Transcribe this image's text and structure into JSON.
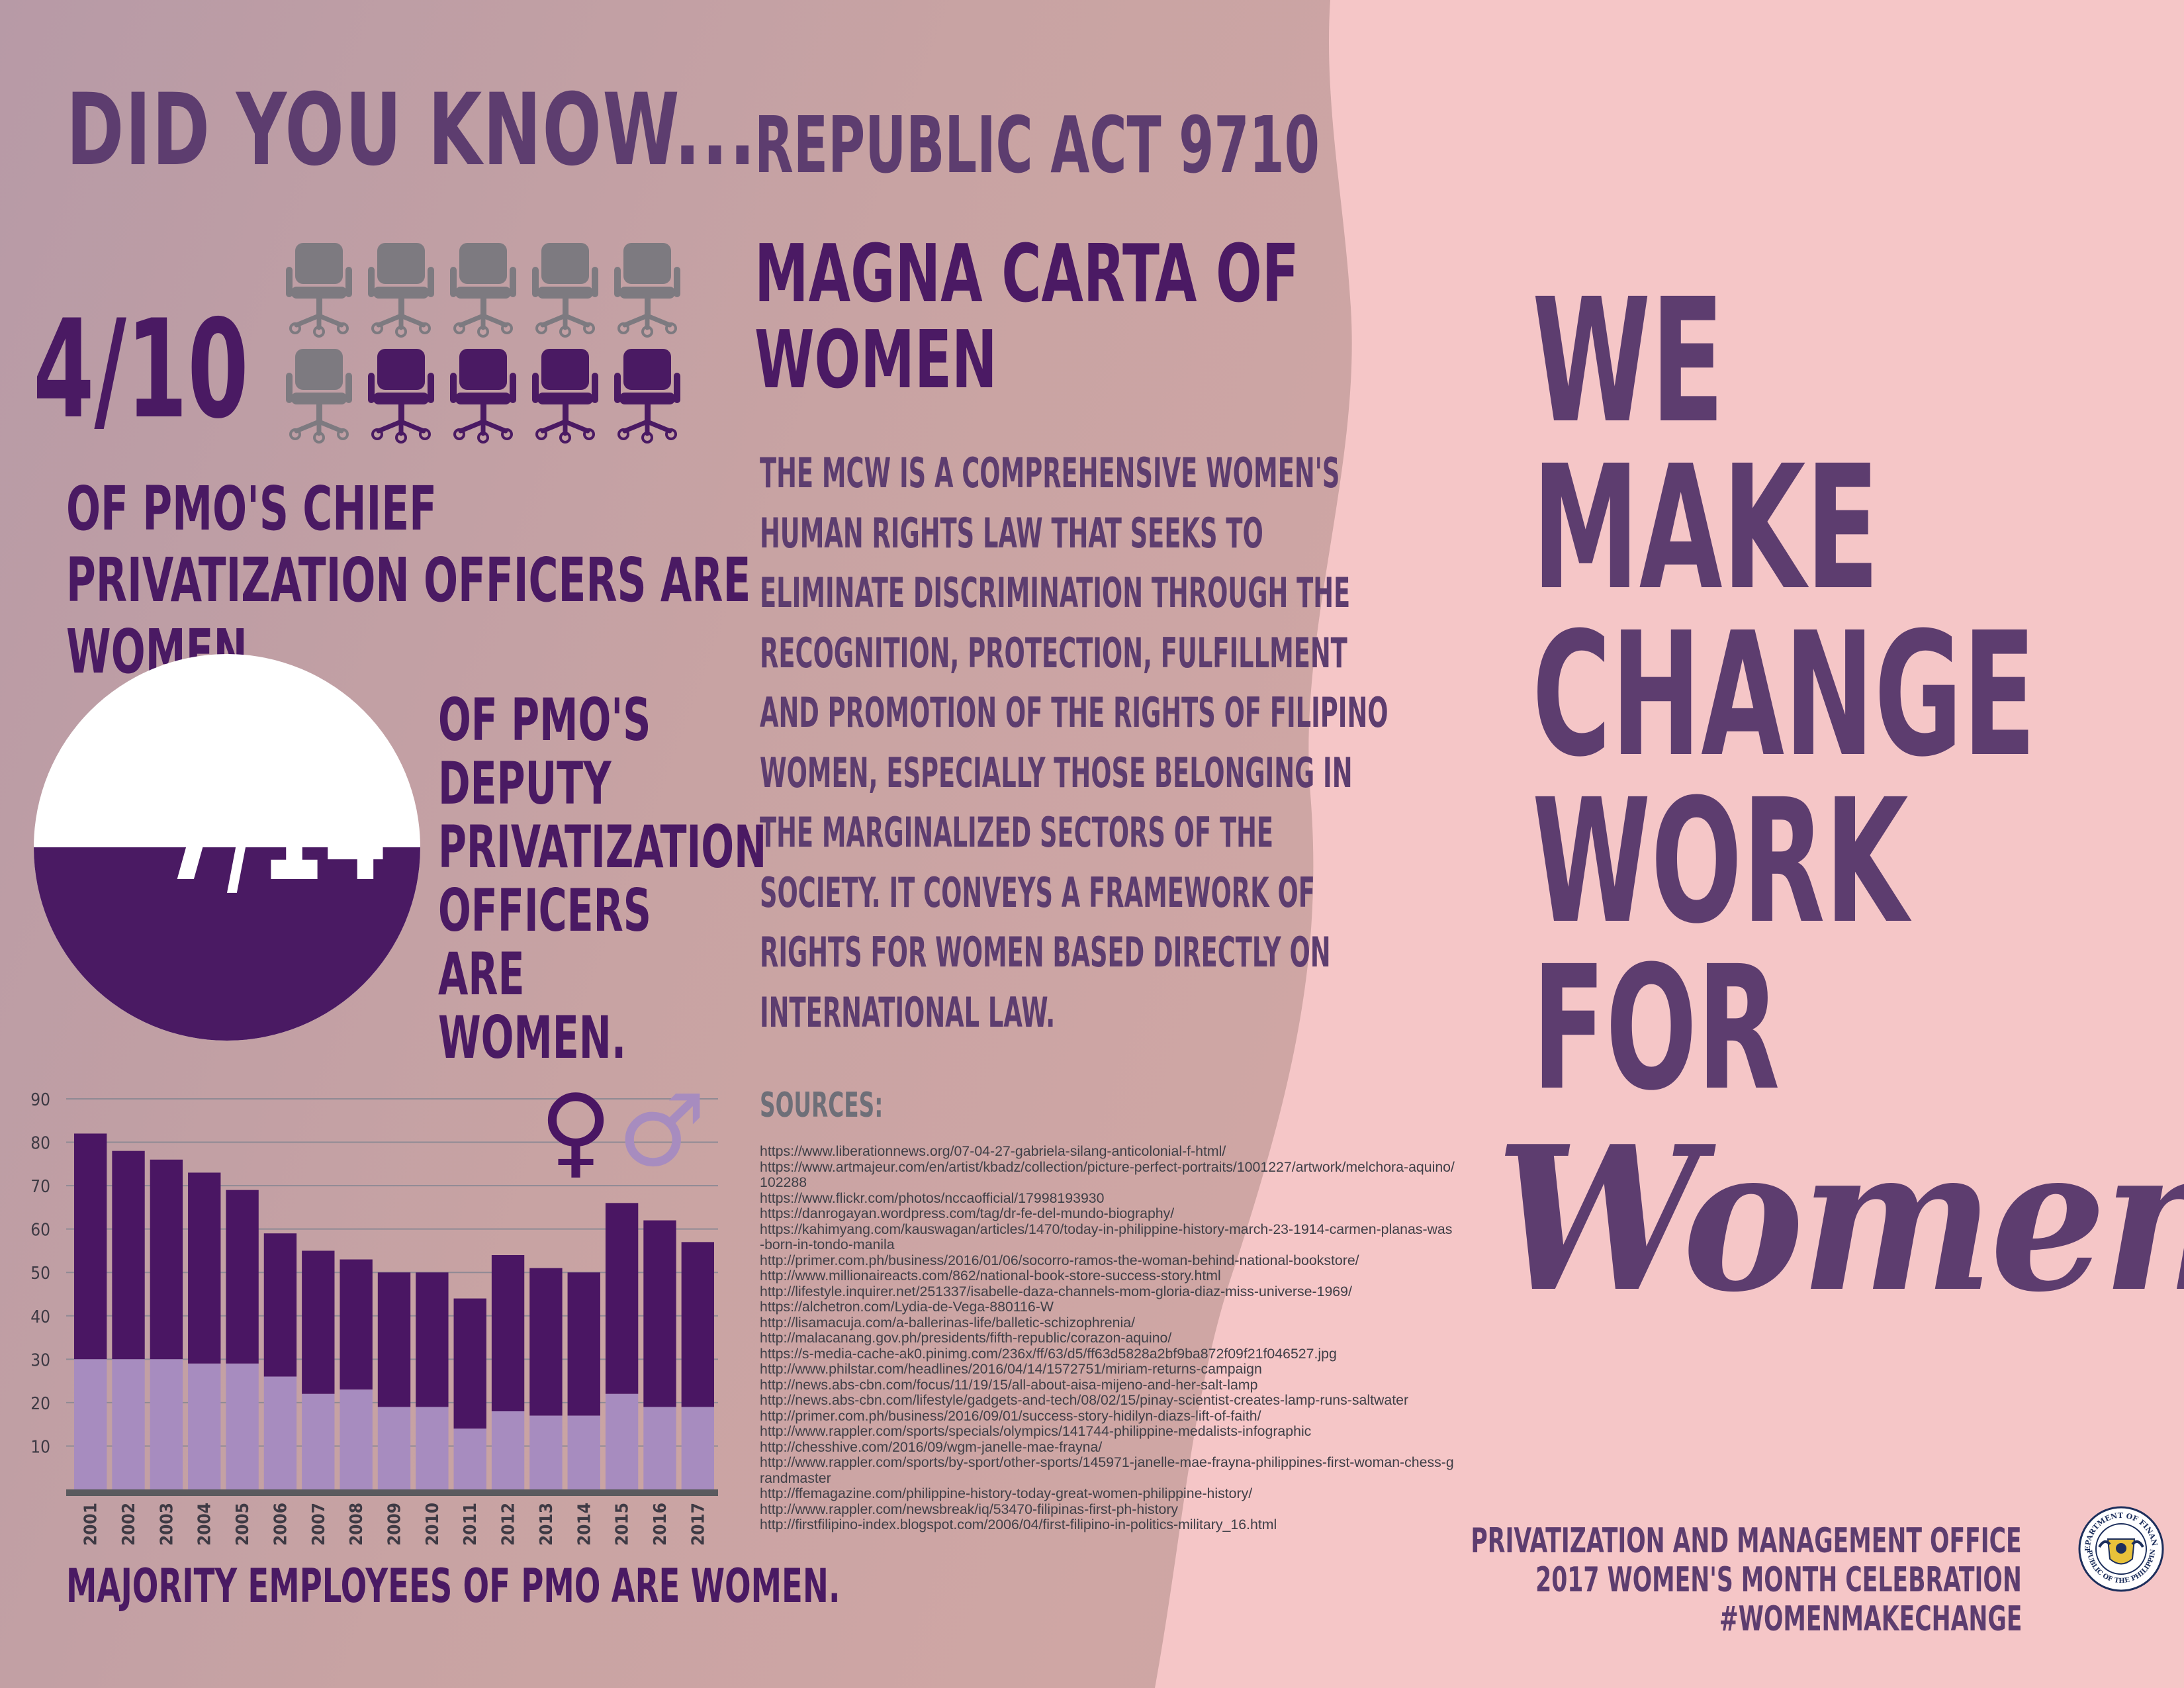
{
  "header": {
    "did_you_know": "DID YOU KNOW...",
    "republic_act": "REPUBLIC ACT 9710"
  },
  "stat_chief": {
    "fraction": "4/10",
    "women": 4,
    "total": 10,
    "text": "OF PMO'S CHIEF PRIVATIZATION OFFICERS ARE WOMEN.",
    "icon": "office-chair-icon",
    "color_women": "#4a1a63",
    "color_other": "#7d7a80"
  },
  "stat_deputy": {
    "fraction": "7/14",
    "women": 7,
    "total": 14,
    "text": "OF PMO'S DEPUTY PRIVATIZATION OFFICERS ARE WOMEN.",
    "color_fill": "#4a1a63"
  },
  "magna": {
    "title": "MAGNA CARTA OF WOMEN",
    "description": "THE MCW IS A COMPREHENSIVE WOMEN'S HUMAN RIGHTS LAW THAT SEEKS TO ELIMINATE DISCRIMINATION THROUGH THE RECOGNITION, PROTECTION, FULFILLMENT AND PROMOTION OF THE RIGHTS OF FILIPINO WOMEN, ESPECIALLY THOSE BELONGING IN THE MARGINALIZED SECTORS OF THE SOCIETY. IT CONVEYS A FRAMEWORK OF RIGHTS FOR WOMEN BASED DIRECTLY ON INTERNATIONAL LAW."
  },
  "sources": {
    "label": "SOURCES:",
    "items": [
      "https://www.liberationnews.org/07-04-27-gabriela-silang-anticolonial-f-html/",
      "https://www.artmajeur.com/en/artist/kbadz/collection/picture-perfect-portraits/1001227/artwork/melchora-aquino/102288",
      "https://www.flickr.com/photos/nccaofficial/17998193930",
      "https://danrogayan.wordpress.com/tag/dr-fe-del-mundo-biography/",
      "https://kahimyang.com/kauswagan/articles/1470/today-in-philippine-history-march-23-1914-carmen-planas-was-born-in-tondo-manila",
      "http://primer.com.ph/business/2016/01/06/socorro-ramos-the-woman-behind-national-bookstore/",
      "http://www.millionaireacts.com/862/national-book-store-success-story.html",
      "http://lifestyle.inquirer.net/251337/isabelle-daza-channels-mom-gloria-diaz-miss-universe-1969/",
      "https://alchetron.com/Lydia-de-Vega-880116-W",
      "http://lisamacuja.com/a-ballerinas-life/balletic-schizophrenia/",
      "http://malacanang.gov.ph/presidents/fifth-republic/corazon-aquino/",
      "https://s-media-cache-ak0.pinimg.com/236x/ff/63/d5/ff63d5828a2bf9ba872f09f21f046527.jpg",
      "http://www.philstar.com/headlines/2016/04/14/1572751/miriam-returns-campaign",
      "http://news.abs-cbn.com/focus/11/19/15/all-about-aisa-mijeno-and-her-salt-lamp",
      "http://news.abs-cbn.com/lifestyle/gadgets-and-tech/08/02/15/pinay-scientist-creates-lamp-runs-saltwater",
      "http://primer.com.ph/business/2016/09/01/success-story-hidilyn-diazs-lift-of-faith/",
      "http://www.rappler.com/sports/specials/olympics/141744-philippine-medalists-infographic",
      "http://chesshive.com/2016/09/wgm-janelle-mae-frayna/",
      "http://www.rappler.com/sports/by-sport/other-sports/145971-janelle-mae-frayna-philippines-first-woman-chess-grandmaster",
      "http://ffemagazine.com/philippine-history-today-great-women-philippine-history/",
      "http://www.rappler.com/newsbreak/iq/53470-filipinas-first-ph-history",
      "http://firstfilipino-index.blogspot.com/2006/04/first-filipino-in-politics-military_16.html"
    ]
  },
  "slogan": {
    "lines": [
      "WE",
      "MAKE",
      "CHANGE",
      "WORK",
      "FOR"
    ],
    "script": "Women."
  },
  "footer": {
    "office": "PRIVATIZATION AND MANAGEMENT OFFICE",
    "event": "2017 WOMEN'S MONTH CELEBRATION",
    "hashtag": "#WOMENMAKECHANGE",
    "seal_top": "DEPARTMENT OF FINANCE",
    "seal_bottom": "REPUBLIC OF THE PHILIPPINES"
  },
  "chart_caption": "MAJORITY EMPLOYEES OF PMO ARE WOMEN.",
  "chart_data": {
    "type": "bar",
    "stacked": true,
    "categories": [
      "2001",
      "2002",
      "2003",
      "2004",
      "2005",
      "2006",
      "2007",
      "2008",
      "2009",
      "2010",
      "2011",
      "2012",
      "2013",
      "2014",
      "2015",
      "2016",
      "2017"
    ],
    "total_values": [
      82,
      78,
      76,
      73,
      69,
      59,
      55,
      53,
      50,
      50,
      44,
      54,
      51,
      50,
      66,
      62,
      57
    ],
    "series": [
      {
        "name": "♂",
        "values": [
          30,
          30,
          30,
          29,
          29,
          26,
          22,
          23,
          19,
          19,
          14,
          18,
          17,
          17,
          22,
          19,
          19
        ],
        "color": "#a78cbf"
      },
      {
        "name": "♀",
        "values": [
          52,
          48,
          46,
          44,
          40,
          33,
          33,
          30,
          31,
          31,
          30,
          36,
          34,
          33,
          44,
          43,
          38
        ],
        "color": "#4a1663"
      }
    ],
    "yticks": [
      10,
      20,
      30,
      40,
      50,
      60,
      70,
      80,
      90
    ],
    "ylim": [
      0,
      90
    ],
    "grid": true,
    "legend": "top-right"
  }
}
